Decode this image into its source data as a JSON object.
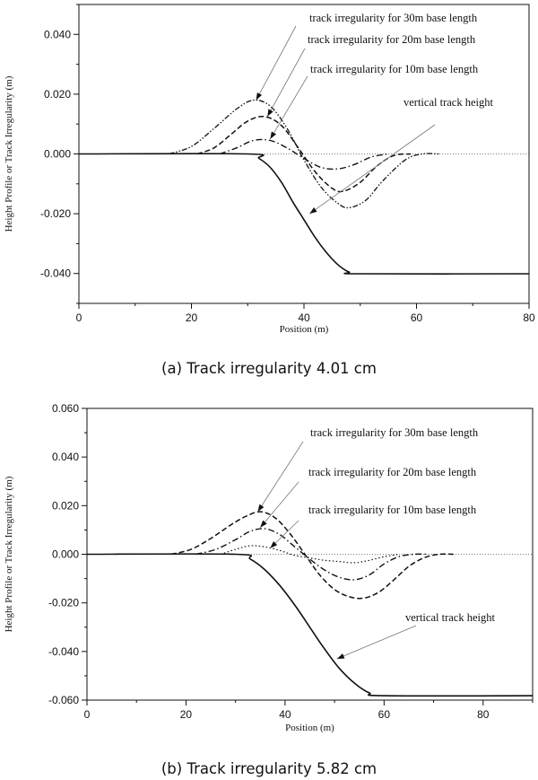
{
  "chart_data": [
    {
      "type": "line",
      "caption": "(a) Track irregularity 4.01 cm",
      "xlabel": "Position (m)",
      "ylabel": "Height Profile or Track Irregularity (m)",
      "xlim": [
        0,
        80
      ],
      "ylim": [
        -0.05,
        0.05
      ],
      "xticks": [
        "0",
        "20",
        "40",
        "60",
        "80"
      ],
      "yticks": [
        "0.040",
        "0.020",
        "0.000",
        "-0.020",
        "-0.040"
      ],
      "series": [
        {
          "name": "track irregularity for 30m base length",
          "style": "dashdotdot",
          "x": [
            16,
            20,
            24,
            28,
            31,
            34,
            37,
            40,
            43,
            46,
            48,
            51,
            54,
            58,
            61,
            64
          ],
          "y": [
            0,
            0.0025,
            0.0085,
            0.015,
            0.018,
            0.016,
            0.0085,
            -0.002,
            -0.011,
            -0.0165,
            -0.018,
            -0.0155,
            -0.009,
            -0.002,
            0,
            0
          ]
        },
        {
          "name": "track irregularity for 20m base length",
          "style": "dashed",
          "x": [
            21,
            24,
            27,
            30,
            33,
            36,
            39,
            42,
            45,
            47,
            50,
            53,
            56,
            59
          ],
          "y": [
            0,
            0.002,
            0.0065,
            0.011,
            0.0125,
            0.0095,
            0.002,
            -0.006,
            -0.0115,
            -0.0125,
            -0.0095,
            -0.004,
            -0.0005,
            0
          ]
        },
        {
          "name": "track irregularity for 10m base length",
          "style": "dashdot",
          "x": [
            25,
            28,
            31,
            34,
            37,
            40,
            43,
            46,
            49,
            52,
            55
          ],
          "y": [
            0,
            0.002,
            0.0045,
            0.0045,
            0.002,
            -0.0015,
            -0.0045,
            -0.005,
            -0.0035,
            -0.001,
            0
          ]
        },
        {
          "name": "vertical track height",
          "style": "solid",
          "x": [
            0,
            30,
            32,
            34,
            36,
            38,
            40,
            42,
            44,
            46,
            48,
            50,
            80
          ],
          "y": [
            0,
            0,
            -0.0015,
            -0.0045,
            -0.0095,
            -0.016,
            -0.022,
            -0.028,
            -0.033,
            -0.037,
            -0.0395,
            -0.0401,
            -0.0401
          ]
        }
      ]
    },
    {
      "type": "line",
      "caption": "(b) Track irregularity 5.82 cm",
      "xlabel": "Position (m)",
      "ylabel": "Height Profile or Track Irregularity (m)",
      "xlim": [
        0,
        90
      ],
      "ylim": [
        -0.06,
        0.06
      ],
      "xticks": [
        "0",
        "20",
        "40",
        "60",
        "80"
      ],
      "yticks": [
        "0.060",
        "0.040",
        "0.020",
        "0.000",
        "-0.020",
        "-0.040",
        "-0.060"
      ],
      "series": [
        {
          "name": "track irregularity for 30m base length",
          "style": "dashed",
          "x": [
            17,
            21,
            25,
            29,
            32,
            35,
            38,
            41,
            44,
            47,
            50,
            53,
            56,
            59,
            62,
            65,
            68,
            71,
            74
          ],
          "y": [
            0,
            0.002,
            0.0065,
            0.012,
            0.0155,
            0.0175,
            0.015,
            0.0085,
            0.0,
            -0.0085,
            -0.0145,
            -0.0175,
            -0.018,
            -0.0155,
            -0.0105,
            -0.005,
            -0.0015,
            0,
            0
          ]
        },
        {
          "name": "track irregularity for 20m base length",
          "style": "dashdot",
          "x": [
            22,
            26,
            30,
            33,
            36,
            39,
            42,
            45,
            48,
            51,
            54,
            57,
            60,
            63,
            66,
            69
          ],
          "y": [
            0,
            0.002,
            0.006,
            0.0095,
            0.0105,
            0.008,
            0.003,
            -0.002,
            -0.0065,
            -0.0095,
            -0.0105,
            -0.0085,
            -0.004,
            -0.001,
            0,
            0
          ]
        },
        {
          "name": "track irregularity for 10m base length",
          "style": "dotted",
          "x": [
            27,
            30,
            33,
            36,
            39,
            42,
            45,
            48,
            51,
            54,
            57,
            60,
            63
          ],
          "y": [
            0,
            0.002,
            0.0035,
            0.003,
            0.0015,
            -0.0005,
            -0.0015,
            -0.0025,
            -0.003,
            -0.0035,
            -0.0025,
            -0.001,
            0
          ]
        },
        {
          "name": "vertical track height",
          "style": "solid",
          "x": [
            0,
            30,
            33,
            36,
            39,
            42,
            45,
            48,
            51,
            54,
            57,
            60,
            90
          ],
          "y": [
            0,
            0,
            -0.002,
            -0.0065,
            -0.013,
            -0.021,
            -0.03,
            -0.039,
            -0.047,
            -0.053,
            -0.057,
            -0.0582,
            -0.0582
          ]
        }
      ]
    }
  ]
}
